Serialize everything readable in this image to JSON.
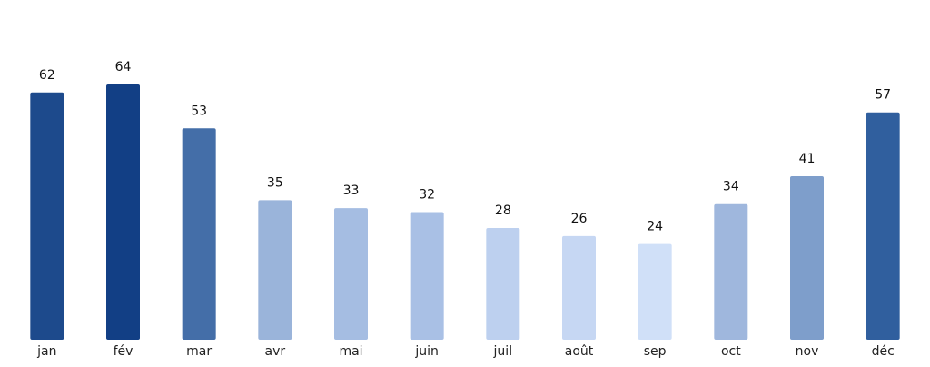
{
  "chart_data": {
    "type": "bar",
    "categories": [
      "jan",
      "fév",
      "mar",
      "avr",
      "mai",
      "juin",
      "juil",
      "août",
      "sep",
      "oct",
      "nov",
      "déc"
    ],
    "values": [
      62,
      64,
      53,
      35,
      33,
      32,
      28,
      26,
      24,
      34,
      41,
      57
    ],
    "colors": [
      "#1d4a8c",
      "#123f85",
      "#446ea8",
      "#9ab4da",
      "#a5bde2",
      "#a9c0e5",
      "#bdd0ef",
      "#c6d7f3",
      "#d0e0f8",
      "#9fb7dd",
      "#7e9ecb",
      "#305f9e"
    ],
    "title": "",
    "xlabel": "",
    "ylabel": "",
    "ylim": [
      0,
      64
    ],
    "grid": false,
    "data_labels": true
  }
}
